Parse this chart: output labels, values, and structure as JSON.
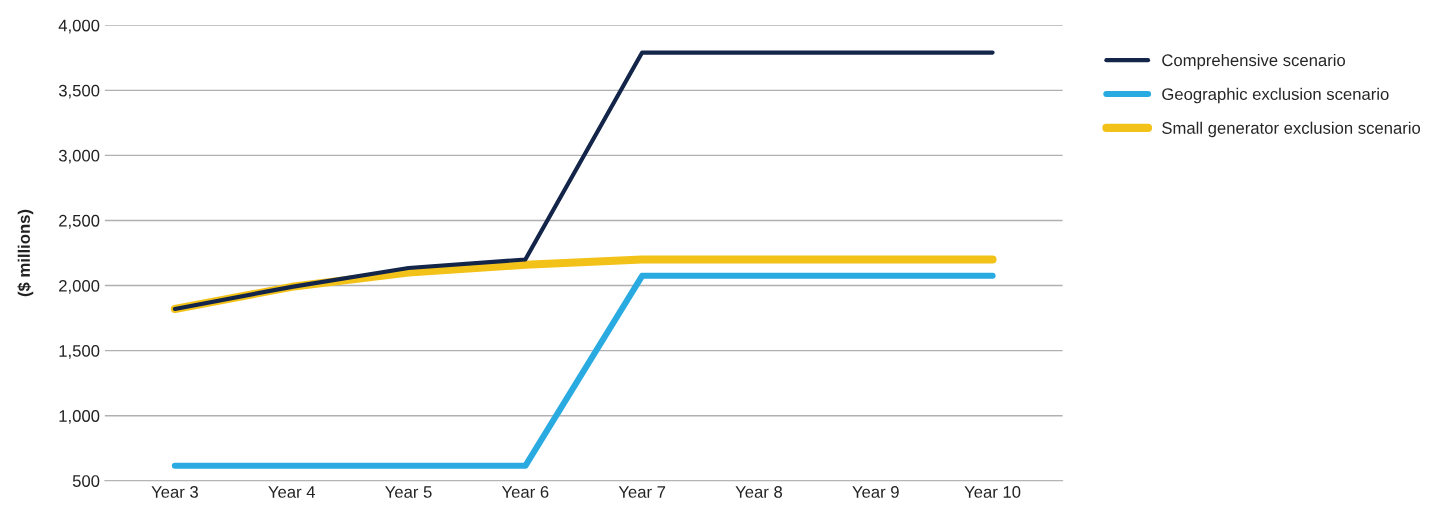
{
  "chart_data": {
    "type": "line",
    "ylabel": "($ millions)",
    "categories": [
      "Year 3",
      "Year 4",
      "Year 5",
      "Year 6",
      "Year 7",
      "Year 8",
      "Year 9",
      "Year 10"
    ],
    "series": [
      {
        "name": "Comprehensive scenario",
        "color": "#14254a",
        "values": [
          1820,
          1990,
          2135,
          2200,
          3790,
          3790,
          3790,
          3790
        ]
      },
      {
        "name": "Geographic exclusion scenario",
        "color": "#29abe2",
        "values": [
          615,
          615,
          615,
          615,
          2075,
          2075,
          2075,
          2075
        ]
      },
      {
        "name": "Small generator exclusion scenario",
        "color": "#f2c218",
        "values": [
          1820,
          1990,
          2100,
          2160,
          2200,
          2200,
          2200,
          2200
        ]
      }
    ],
    "ylim": [
      500,
      4000
    ],
    "yticks": [
      {
        "value": 500,
        "label": "500"
      },
      {
        "value": 1000,
        "label": "1,000"
      },
      {
        "value": 1500,
        "label": "1,500"
      },
      {
        "value": 2000,
        "label": "2,000"
      },
      {
        "value": 2500,
        "label": "2,500"
      },
      {
        "value": 3000,
        "label": "3,000"
      },
      {
        "value": 3500,
        "label": "3,500"
      },
      {
        "value": 4000,
        "label": "4,000"
      }
    ],
    "grid": "y",
    "legend": "right",
    "marker": "none",
    "line_style": "solid"
  }
}
